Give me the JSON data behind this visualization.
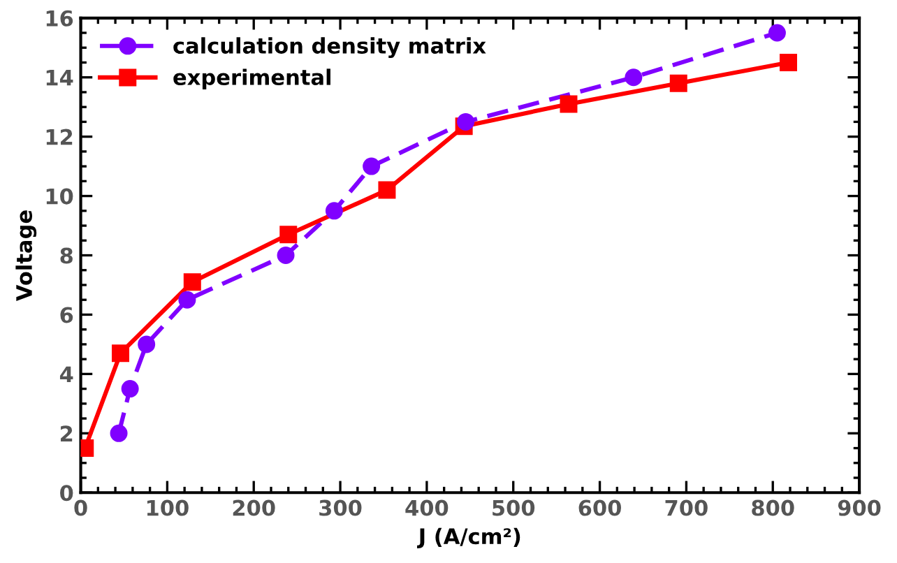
{
  "chart_data": {
    "type": "line",
    "xlabel": "J (A/cm²)",
    "ylabel": "Voltage",
    "xlim": [
      0,
      900
    ],
    "xticks": [
      0,
      100,
      200,
      300,
      400,
      500,
      600,
      700,
      800,
      900
    ],
    "ylim": [
      0,
      16
    ],
    "yticks": [
      0,
      2,
      4,
      6,
      8,
      10,
      12,
      14,
      16
    ],
    "grid": false,
    "legend": "top left",
    "series": [
      {
        "name": "calculation density matrix",
        "color": "#8000ff",
        "marker": "circle",
        "line_style": "dashed",
        "x": [
          44,
          57,
          76,
          123,
          237,
          293,
          336,
          445,
          639,
          805
        ],
        "values": [
          2.0,
          3.5,
          5.0,
          6.5,
          8.0,
          9.5,
          11.0,
          12.5,
          14.0,
          15.5
        ]
      },
      {
        "name": "experimental",
        "color": "#ff0000",
        "marker": "square",
        "line_style": "solid",
        "x": [
          5,
          46,
          129,
          240,
          354,
          443,
          564,
          691,
          818
        ],
        "values": [
          1.5,
          4.7,
          7.1,
          8.7,
          10.2,
          12.35,
          13.1,
          13.8,
          14.5
        ]
      }
    ]
  }
}
